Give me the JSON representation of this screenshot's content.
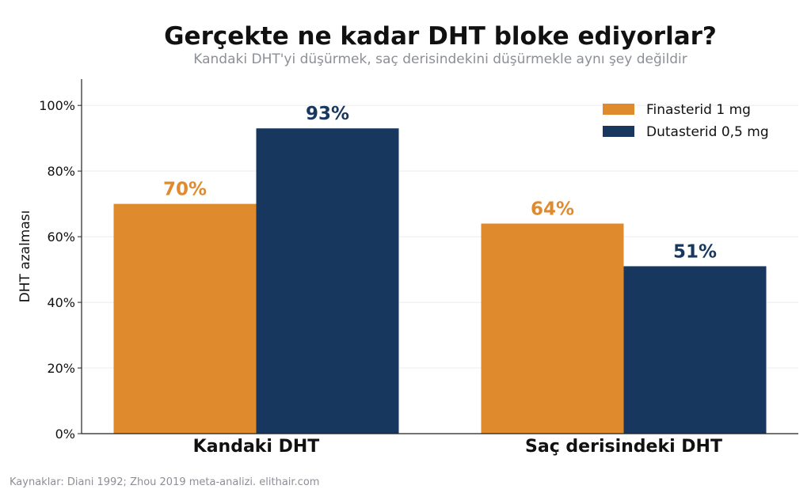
{
  "chart_data": {
    "type": "bar",
    "title": "Gerçekte ne kadar DHT bloke ediyorlar?",
    "subtitle": "Kandaki DHT'yi düşürmek, saç derisindekini düşürmekle aynı şey değildir",
    "categories": [
      "Kandaki DHT",
      "Saç derisindeki DHT"
    ],
    "series": [
      {
        "name": "Finasterid 1 mg",
        "values": [
          70,
          64
        ],
        "labels": [
          "70%",
          "64%"
        ],
        "color": "#e08a2e"
      },
      {
        "name": "Dutasterid 0,5 mg",
        "values": [
          93,
          51
        ],
        "labels": [
          "93%",
          "51%"
        ],
        "color": "#17375e"
      }
    ],
    "xlabel": "",
    "ylabel": "DHT azalması",
    "ylim": [
      0,
      108
    ],
    "yticks": [
      0,
      20,
      40,
      60,
      80,
      100
    ],
    "ytick_labels": [
      "0%",
      "20%",
      "40%",
      "60%",
      "80%",
      "100%"
    ],
    "grid": true,
    "legend_position": "top-right",
    "source": "Kaynaklar: Diani 1992; Zhou 2019 meta-analizi. elithair.com"
  }
}
